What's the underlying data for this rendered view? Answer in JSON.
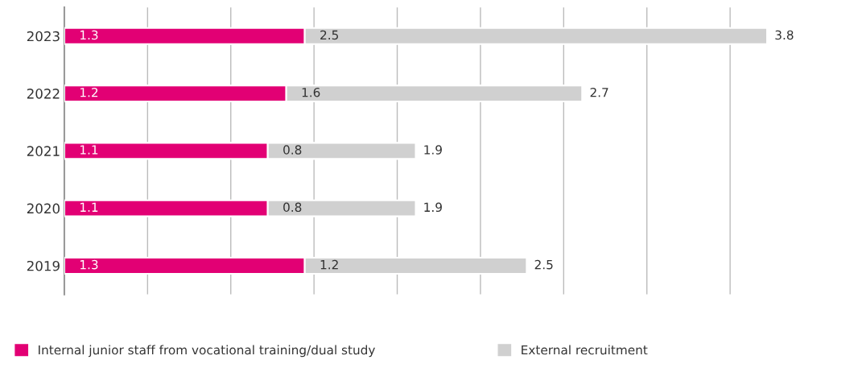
{
  "chart_data": {
    "type": "bar",
    "orientation": "horizontal",
    "stacked": true,
    "categories": [
      "2023",
      "2022",
      "2021",
      "2020",
      "2019"
    ],
    "series": [
      {
        "name": "Internal junior staff from vocational training/dual study",
        "color": "#e20074",
        "values": [
          1.3,
          1.2,
          1.1,
          1.1,
          1.3
        ]
      },
      {
        "name": "External recruitment",
        "color": "#d0d0d0",
        "values": [
          2.5,
          1.6,
          0.8,
          0.8,
          1.2
        ]
      }
    ],
    "totals": [
      "3.8",
      "2.7",
      "1.9",
      "1.9",
      "2.5"
    ],
    "data_labels": true,
    "xticks": [
      {
        "value": 0,
        "label": null
      },
      {
        "value": 0.45,
        "label": null
      },
      {
        "value": 0.9,
        "label": null
      },
      {
        "value": 1.35,
        "label": null
      },
      {
        "value": 1.8,
        "label": null
      },
      {
        "value": 2.25,
        "label": null
      },
      {
        "value": 2.7,
        "label": null
      },
      {
        "value": 3.15,
        "label": null
      },
      {
        "value": 3.6,
        "label": null
      }
    ],
    "tick_labels": "y",
    "grid": "x",
    "legend": "bottom left"
  }
}
